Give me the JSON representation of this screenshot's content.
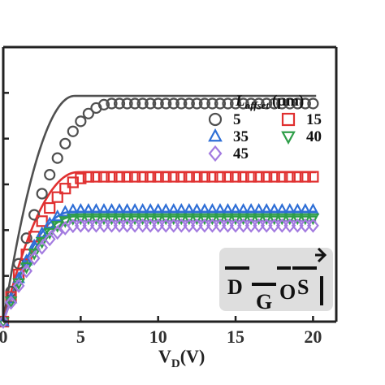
{
  "chart_data": {
    "type": "line",
    "xlabel_main": "V",
    "xlabel_sub": "D",
    "xlabel_tail": "(V)",
    "xlim": [
      0,
      21.5
    ],
    "ylim": [
      0,
      1.8
    ],
    "x_ticks": [
      "0",
      "5",
      "10",
      "15",
      "20"
    ],
    "x_tick_values": [
      0,
      5,
      10,
      15,
      20
    ],
    "legend": {
      "title_italic": "L",
      "title_sub": "offset",
      "title_unit": "(μm)",
      "entries": [
        {
          "label": "5",
          "marker": "circle",
          "color": "#505050"
        },
        {
          "label": "15",
          "marker": "square",
          "color": "#e03030"
        },
        {
          "label": "35",
          "marker": "triangle-up",
          "color": "#2f6fd6"
        },
        {
          "label": "40",
          "marker": "triangle-down",
          "color": "#2e9e48"
        },
        {
          "label": "45",
          "marker": "diamond",
          "color": "#a37be0"
        }
      ]
    },
    "series": [
      {
        "name": "5",
        "color": "#505050",
        "marker": "circle",
        "line_sat": 1.48,
        "line_vk": 4.6,
        "meas_sat": 1.43,
        "meas_vk": 7.0
      },
      {
        "name": "15",
        "color": "#e03030",
        "marker": "square",
        "line_sat": 0.98,
        "line_vk": 4.8,
        "meas_sat": 0.95,
        "meas_vk": 5.6
      },
      {
        "name": "35",
        "color": "#2f6fd6",
        "marker": "triangle-up",
        "line_sat": 0.72,
        "line_vk": 4.4,
        "meas_sat": 0.73,
        "meas_vk": 4.6
      },
      {
        "name": "40",
        "color": "#2e9e48",
        "marker": "triangle-down",
        "line_sat": 0.69,
        "line_vk": 4.6,
        "meas_sat": 0.68,
        "meas_vk": 4.8
      },
      {
        "name": "45",
        "color": "#a37be0",
        "marker": "diamond",
        "line_sat": 0.66,
        "line_vk": 4.6,
        "meas_sat": 0.63,
        "meas_vk": 4.8
      }
    ],
    "measured_x_step": 0.5,
    "inset": {
      "labels": {
        "drain": "D",
        "gate": "G",
        "oxide": "O",
        "source": "S"
      }
    }
  }
}
